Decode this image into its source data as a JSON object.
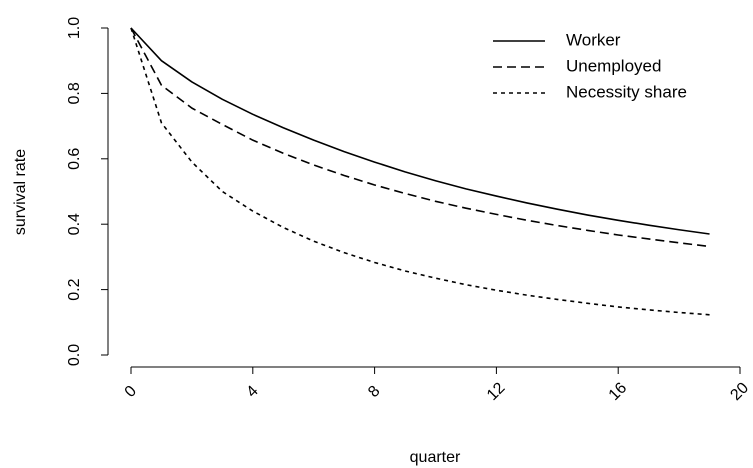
{
  "chart_data": {
    "type": "line",
    "title": "",
    "xlabel": "quarter",
    "ylabel": "survival rate",
    "xlim": [
      0,
      20
    ],
    "ylim": [
      0,
      1
    ],
    "x_ticks": [
      "0",
      "4",
      "8",
      "12",
      "16",
      "20"
    ],
    "y_ticks": [
      "0.0",
      "0.2",
      "0.4",
      "0.6",
      "0.8",
      "1.0"
    ],
    "grid": false,
    "legend_position": "top-right",
    "x": [
      0,
      1,
      2,
      3,
      4,
      5,
      6,
      7,
      8,
      9,
      10,
      11,
      12,
      13,
      14,
      15,
      16,
      17,
      18,
      19
    ],
    "series": [
      {
        "name": "Worker",
        "line_style": "solid",
        "values": [
          1.0,
          0.9,
          0.835,
          0.782,
          0.736,
          0.695,
          0.657,
          0.622,
          0.59,
          0.56,
          0.533,
          0.508,
          0.486,
          0.465,
          0.446,
          0.428,
          0.412,
          0.397,
          0.383,
          0.37
        ]
      },
      {
        "name": "Unemployed",
        "line_style": "dashed",
        "values": [
          1.0,
          0.825,
          0.755,
          0.705,
          0.657,
          0.617,
          0.581,
          0.549,
          0.52,
          0.494,
          0.47,
          0.449,
          0.43,
          0.412,
          0.396,
          0.381,
          0.367,
          0.355,
          0.343,
          0.332
        ]
      },
      {
        "name": "Necessity share",
        "line_style": "dotted",
        "values": [
          1.0,
          0.71,
          0.59,
          0.5,
          0.44,
          0.39,
          0.348,
          0.313,
          0.283,
          0.257,
          0.235,
          0.215,
          0.198,
          0.183,
          0.17,
          0.158,
          0.147,
          0.138,
          0.13,
          0.123
        ]
      }
    ]
  }
}
